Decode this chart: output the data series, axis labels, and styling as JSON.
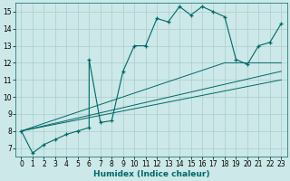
{
  "title": "",
  "xlabel": "Humidex (Indice chaleur)",
  "bg_color": "#cce8e8",
  "grid_color": "#aacece",
  "line_color": "#006868",
  "xlim": [
    -0.5,
    23.5
  ],
  "ylim": [
    6.5,
    15.5
  ],
  "xticks": [
    0,
    1,
    2,
    3,
    4,
    5,
    6,
    7,
    8,
    9,
    10,
    11,
    12,
    13,
    14,
    15,
    16,
    17,
    18,
    19,
    20,
    21,
    22,
    23
  ],
  "yticks": [
    7,
    8,
    9,
    10,
    11,
    12,
    13,
    14,
    15
  ],
  "main_x": [
    0,
    1,
    2,
    3,
    4,
    5,
    6,
    6,
    7,
    8,
    9,
    10,
    11,
    12,
    13,
    14,
    15,
    16,
    17,
    18,
    19,
    20,
    21,
    22,
    23
  ],
  "main_y": [
    8.0,
    6.7,
    7.2,
    7.5,
    7.8,
    8.0,
    8.2,
    12.2,
    8.5,
    8.6,
    11.5,
    13.0,
    13.0,
    14.6,
    14.4,
    15.3,
    14.8,
    15.3,
    15.0,
    14.7,
    12.2,
    11.9,
    13.0,
    13.2,
    14.3
  ],
  "tri_line1_x": [
    0,
    18,
    23
  ],
  "tri_line1_y": [
    8.0,
    12.0,
    12.0
  ],
  "tri_line2_x": [
    0,
    23
  ],
  "tri_line2_y": [
    8.0,
    11.5
  ],
  "tri_line3_x": [
    0,
    23
  ],
  "tri_line3_y": [
    8.0,
    11.0
  ],
  "figsize": [
    3.2,
    2.0
  ],
  "dpi": 100
}
